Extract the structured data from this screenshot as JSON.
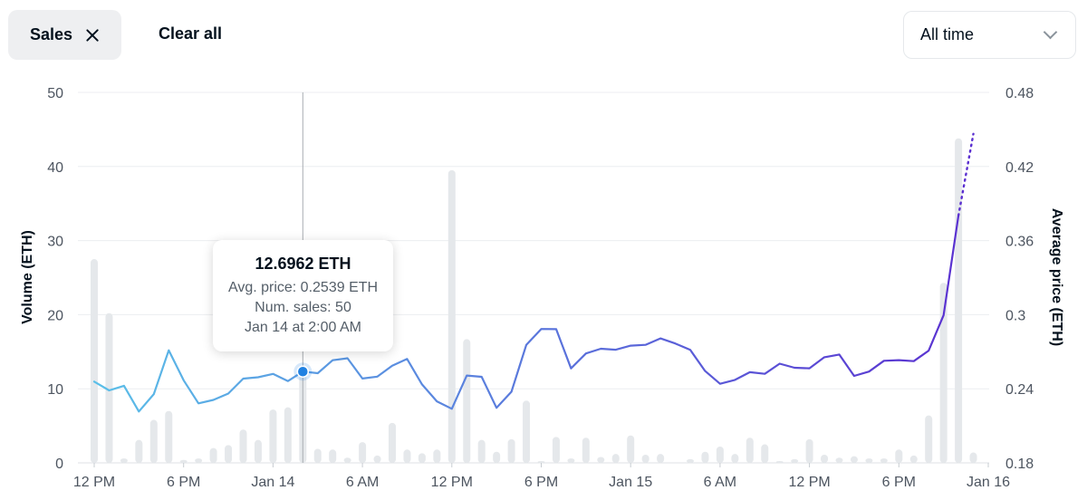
{
  "filters": {
    "chip_label": "Sales",
    "clear_label": "Clear all",
    "range_value": "All time"
  },
  "tooltip": {
    "volume": "12.6962 ETH",
    "avg_price": "Avg. price: 0.2539 ETH",
    "num_sales": "Num. sales: 50",
    "time": "Jan 14 at 2:00 AM"
  },
  "chart_data": {
    "type": "bar",
    "xlabel": "",
    "ylabel": "Volume (ETH)",
    "y2label": "Average price (ETH)",
    "ylim": [
      0,
      50
    ],
    "y2lim": [
      0.18,
      0.48
    ],
    "yticks": [
      "0",
      "10",
      "20",
      "30",
      "40",
      "50"
    ],
    "y2ticks": [
      "0.18",
      "0.24",
      "0.3",
      "0.36",
      "0.42",
      "0.48"
    ],
    "xticks": [
      "12 PM",
      "6 PM",
      "Jan 14",
      "6 AM",
      "12 PM",
      "6 PM",
      "Jan 15",
      "6 AM",
      "12 PM",
      "6 PM",
      "Jan 16"
    ],
    "grid": true,
    "legend": "none",
    "colors": {
      "bar": "#e5e8eb",
      "line_start": "#5bbfe8",
      "line_end": "#5a2fd0",
      "marker": "#2081e2"
    },
    "hovered_index": 14,
    "series": [
      {
        "kind": "bar",
        "values": [
          27.5,
          20.2,
          0.6,
          3.1,
          5.8,
          7,
          0.4,
          0.6,
          2,
          2.4,
          4.5,
          3.1,
          7.2,
          7.5,
          12.7,
          1.9,
          1.8,
          0.7,
          2.8,
          1,
          5.4,
          1.8,
          1.3,
          1.8,
          39.5,
          16.7,
          3.1,
          1.5,
          3.2,
          8.4,
          0.2,
          3.5,
          0.6,
          3.4,
          0.8,
          1.2,
          3.7,
          1.1,
          1.2,
          0,
          0.5,
          1.5,
          2.2,
          1.2,
          3.4,
          2.5,
          0.2,
          0.5,
          3.2,
          1.1,
          0.7,
          0.9,
          0.6,
          0.6,
          1.8,
          1,
          6.4,
          24.3,
          43.8,
          1.4
        ]
      },
      {
        "kind": "line",
        "axis": "right",
        "values": [
          0.2458,
          0.2387,
          0.2424,
          0.2216,
          0.2357,
          0.2712,
          0.2469,
          0.2282,
          0.231,
          0.2361,
          0.2482,
          0.2493,
          0.252,
          0.2462,
          0.2539,
          0.2526,
          0.2631,
          0.2647,
          0.2483,
          0.2498,
          0.2587,
          0.2641,
          0.2435,
          0.2298,
          0.2238,
          0.2507,
          0.2497,
          0.2246,
          0.2376,
          0.2755,
          0.2884,
          0.2883,
          0.2565,
          0.2686,
          0.2724,
          0.2716,
          0.2749,
          0.2756,
          0.2808,
          0.2767,
          0.2715,
          0.2544,
          0.244,
          0.2472,
          0.2534,
          0.2521,
          0.2603,
          0.257,
          0.2566,
          0.2655,
          0.2677,
          0.2504,
          0.2539,
          0.2627,
          0.2632,
          0.2624,
          0.2709,
          0.2996,
          0.3803,
          0.4464
        ]
      }
    ]
  }
}
